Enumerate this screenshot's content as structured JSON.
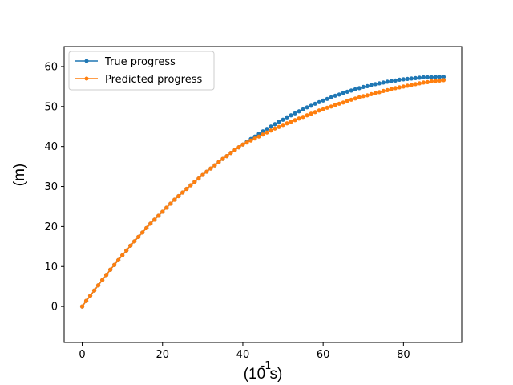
{
  "chart_data": {
    "type": "line",
    "title": "",
    "xlabel": "(10  s)",
    "xlabel_exponent": "-1",
    "ylabel": "(m)",
    "xlim": [
      -4.5,
      94.5
    ],
    "ylim": [
      -9,
      65
    ],
    "x_ticks": [
      0,
      20,
      40,
      60,
      80
    ],
    "y_ticks": [
      0,
      10,
      20,
      30,
      40,
      50,
      60
    ],
    "grid": false,
    "legend_position": "upper-left",
    "x": [
      0,
      1,
      2,
      3,
      4,
      5,
      6,
      7,
      8,
      9,
      10,
      11,
      12,
      13,
      14,
      15,
      16,
      17,
      18,
      19,
      20,
      21,
      22,
      23,
      24,
      25,
      26,
      27,
      28,
      29,
      30,
      31,
      32,
      33,
      34,
      35,
      36,
      37,
      38,
      39,
      40,
      41,
      42,
      43,
      44,
      45,
      46,
      47,
      48,
      49,
      50,
      51,
      52,
      53,
      54,
      55,
      56,
      57,
      58,
      59,
      60,
      61,
      62,
      63,
      64,
      65,
      66,
      67,
      68,
      69,
      70,
      71,
      72,
      73,
      74,
      75,
      76,
      77,
      78,
      79,
      80,
      81,
      82,
      83,
      84,
      85,
      86,
      87,
      88,
      89,
      90
    ],
    "series": [
      {
        "name": "True progress",
        "color": "#1f77b4",
        "values": [
          0.0,
          1.4,
          2.7,
          4.0,
          5.3,
          6.6,
          7.9,
          9.2,
          10.4,
          11.6,
          12.8,
          14.0,
          15.2,
          16.3,
          17.4,
          18.5,
          19.6,
          20.7,
          21.7,
          22.7,
          23.7,
          24.7,
          25.7,
          26.7,
          27.6,
          28.5,
          29.4,
          30.3,
          31.2,
          32.0,
          32.9,
          33.7,
          34.5,
          35.3,
          36.1,
          36.9,
          37.6,
          38.4,
          39.1,
          39.8,
          40.5,
          41.2,
          41.9,
          42.5,
          43.2,
          43.8,
          44.4,
          45.0,
          45.6,
          46.2,
          46.7,
          47.3,
          47.8,
          48.3,
          48.8,
          49.3,
          49.8,
          50.2,
          50.7,
          51.1,
          51.5,
          51.9,
          52.3,
          52.7,
          53.0,
          53.4,
          53.7,
          54.0,
          54.3,
          54.6,
          54.9,
          55.1,
          55.4,
          55.6,
          55.8,
          56.0,
          56.2,
          56.4,
          56.5,
          56.7,
          56.8,
          56.9,
          57.0,
          57.1,
          57.2,
          57.3,
          57.3,
          57.3,
          57.4,
          57.4,
          57.4
        ]
      },
      {
        "name": "Predicted progress",
        "color": "#ff7f0e",
        "values": [
          0.0,
          1.4,
          2.7,
          4.0,
          5.3,
          6.6,
          7.9,
          9.2,
          10.4,
          11.6,
          12.8,
          14.0,
          15.2,
          16.3,
          17.4,
          18.5,
          19.6,
          20.7,
          21.7,
          22.7,
          23.7,
          24.7,
          25.7,
          26.7,
          27.6,
          28.5,
          29.4,
          30.3,
          31.2,
          32.0,
          32.9,
          33.7,
          34.5,
          35.3,
          36.1,
          36.9,
          37.6,
          38.4,
          39.1,
          39.8,
          40.5,
          41.0,
          41.5,
          42.0,
          42.5,
          43.0,
          43.5,
          44.0,
          44.5,
          44.9,
          45.4,
          45.8,
          46.2,
          46.6,
          47.0,
          47.4,
          47.8,
          48.2,
          48.6,
          49.0,
          49.3,
          49.7,
          50.0,
          50.4,
          50.7,
          51.0,
          51.4,
          51.7,
          52.0,
          52.3,
          52.6,
          52.8,
          53.1,
          53.4,
          53.6,
          53.9,
          54.1,
          54.4,
          54.6,
          54.8,
          55.0,
          55.2,
          55.4,
          55.6,
          55.8,
          56.0,
          56.1,
          56.3,
          56.4,
          56.5,
          56.6
        ]
      }
    ]
  }
}
